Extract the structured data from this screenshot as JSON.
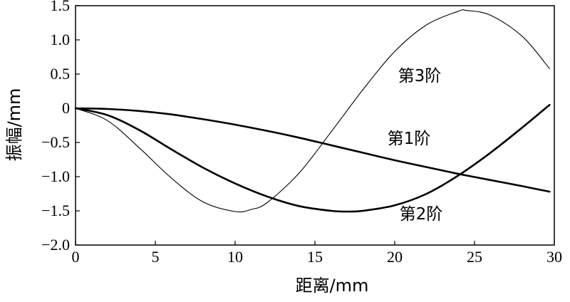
{
  "chart_data": {
    "type": "line",
    "xlabel": "距离/mm",
    "ylabel": "振幅/mm",
    "xlim": [
      0,
      30
    ],
    "ylim": [
      -2.0,
      1.5
    ],
    "x_ticks": [
      "0",
      "5",
      "10",
      "15",
      "20",
      "25",
      "30"
    ],
    "y_ticks": [
      "1.5",
      "1.0",
      "0.5",
      "0",
      "−0.5",
      "−1.0",
      "−1.5",
      "−2.0"
    ],
    "grid": false,
    "legend": "none",
    "series": [
      {
        "name": "第1阶",
        "x": [
          0,
          2,
          4,
          6,
          8,
          10,
          12,
          14,
          16,
          18,
          20,
          22,
          24,
          26,
          28,
          29.7
        ],
        "values": [
          0,
          -0.01,
          -0.04,
          -0.09,
          -0.16,
          -0.24,
          -0.33,
          -0.43,
          -0.54,
          -0.65,
          -0.76,
          -0.86,
          -0.96,
          -1.05,
          -1.14,
          -1.22
        ]
      },
      {
        "name": "第2阶",
        "x": [
          0,
          2,
          4,
          6,
          8,
          10,
          12,
          14,
          16,
          17,
          18,
          20,
          22,
          24,
          26,
          28,
          29.7
        ],
        "values": [
          0,
          -0.1,
          -0.32,
          -0.6,
          -0.87,
          -1.1,
          -1.29,
          -1.43,
          -1.5,
          -1.51,
          -1.5,
          -1.42,
          -1.25,
          -0.98,
          -0.65,
          -0.28,
          0.05
        ]
      },
      {
        "name": "第3阶",
        "x": [
          0,
          2,
          4,
          6,
          8,
          10,
          11,
          12,
          14,
          16,
          18,
          20,
          22,
          24,
          24.5,
          26,
          28,
          29.7
        ],
        "values": [
          0,
          -0.18,
          -0.58,
          -1.02,
          -1.37,
          -1.51,
          -1.48,
          -1.38,
          -0.95,
          -0.35,
          0.27,
          0.83,
          1.22,
          1.42,
          1.43,
          1.36,
          1.05,
          0.58
        ]
      }
    ],
    "series_label_text": [
      "第1阶",
      "第2阶",
      "第3阶"
    ]
  }
}
